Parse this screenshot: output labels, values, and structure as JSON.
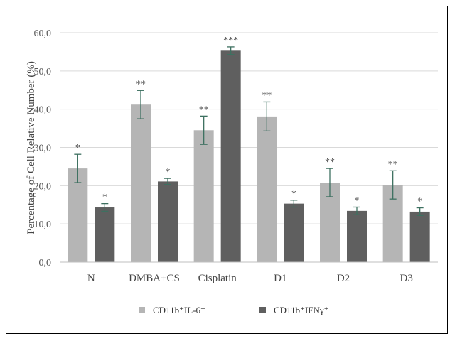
{
  "chart_data": {
    "type": "bar",
    "ylabel": "Percentage of Cell Relative Number (%)",
    "ylim": [
      0,
      60
    ],
    "yticks": [
      "0,0",
      "10,0",
      "20,0",
      "30,0",
      "40,0",
      "50,0",
      "60,0"
    ],
    "categories": [
      "N",
      "DMBA+CS",
      "Cisplatin",
      "D1",
      "D2",
      "D3"
    ],
    "grid": true,
    "legend_position": "bottom",
    "series": [
      {
        "name": "CD11b⁺IL-6⁺",
        "color": "#b5b5b5",
        "values": [
          24.5,
          41.2,
          34.5,
          38.1,
          20.8,
          20.2
        ],
        "errors": [
          3.7,
          3.7,
          3.7,
          3.8,
          3.7,
          3.7
        ],
        "significance": [
          "*",
          "**",
          "**",
          "**",
          "**",
          "**"
        ]
      },
      {
        "name": "CD11b⁺IFNγ⁺",
        "color": "#5f5f5f",
        "values": [
          14.3,
          21.1,
          55.3,
          15.3,
          13.4,
          13.2
        ],
        "errors": [
          1.0,
          0.8,
          1.0,
          0.9,
          1.0,
          1.0
        ],
        "significance": [
          "*",
          "*",
          "***",
          "*",
          "*",
          "*"
        ]
      }
    ]
  },
  "colors": {
    "error_bar": "#3d7060",
    "grid": "#d9d9d9",
    "axis": "#bfbfbf"
  }
}
